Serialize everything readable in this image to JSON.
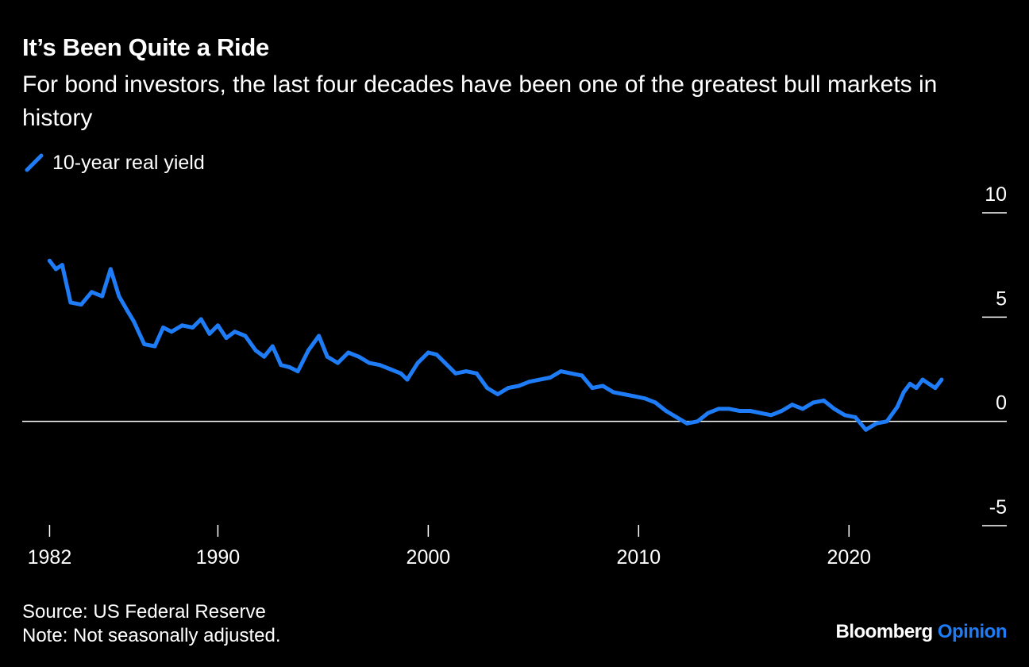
{
  "title": "It’s Been Quite a Ride",
  "subtitle": "For bond investors, the last four decades have been one of the greatest bull markets in history",
  "legend_label": "10-year real yield",
  "source": "Source: US Federal Reserve",
  "note": "Note: Not seasonally adjusted.",
  "brand": {
    "name": "Bloomberg",
    "suffix": "Opinion"
  },
  "colors": {
    "line": "#1f7cf7",
    "background": "#000000",
    "text": "#ffffff",
    "axis": "#ffffff"
  },
  "chart_data": {
    "type": "line",
    "series": [
      {
        "name": "10-year real yield",
        "x": [
          1982.0,
          1982.3,
          1982.6,
          1983.0,
          1983.5,
          1984.0,
          1984.5,
          1984.9,
          1985.3,
          1985.7,
          1986.0,
          1986.5,
          1987.0,
          1987.4,
          1987.8,
          1988.3,
          1988.8,
          1989.2,
          1989.6,
          1990.0,
          1990.4,
          1990.8,
          1991.3,
          1991.8,
          1992.2,
          1992.6,
          1993.0,
          1993.4,
          1993.8,
          1994.3,
          1994.8,
          1995.2,
          1995.7,
          1996.2,
          1996.7,
          1997.2,
          1997.7,
          1998.2,
          1998.7,
          1999.0,
          1999.5,
          2000.0,
          2000.4,
          2000.8,
          2001.3,
          2001.8,
          2002.3,
          2002.8,
          2003.3,
          2003.8,
          2004.3,
          2004.8,
          2005.3,
          2005.8,
          2006.3,
          2006.8,
          2007.3,
          2007.8,
          2008.3,
          2008.8,
          2009.3,
          2009.8,
          2010.3,
          2010.8,
          2011.3,
          2011.8,
          2012.3,
          2012.8,
          2013.3,
          2013.8,
          2014.3,
          2014.8,
          2015.3,
          2015.8,
          2016.3,
          2016.8,
          2017.3,
          2017.8,
          2018.3,
          2018.8,
          2019.3,
          2019.8,
          2020.3,
          2020.8,
          2021.3,
          2021.8,
          2022.3,
          2022.6,
          2022.9,
          2023.2,
          2023.5,
          2023.8,
          2024.1,
          2024.4
        ],
        "y": [
          7.7,
          7.3,
          7.5,
          5.7,
          5.6,
          6.2,
          6.0,
          7.3,
          6.0,
          5.3,
          4.8,
          3.7,
          3.6,
          4.5,
          4.3,
          4.6,
          4.5,
          4.9,
          4.2,
          4.6,
          4.0,
          4.3,
          4.1,
          3.4,
          3.1,
          3.6,
          2.7,
          2.6,
          2.4,
          3.4,
          4.1,
          3.1,
          2.8,
          3.3,
          3.1,
          2.8,
          2.7,
          2.5,
          2.3,
          2.0,
          2.8,
          3.3,
          3.2,
          2.8,
          2.3,
          2.4,
          2.3,
          1.6,
          1.3,
          1.6,
          1.7,
          1.9,
          2.0,
          2.1,
          2.4,
          2.3,
          2.2,
          1.6,
          1.7,
          1.4,
          1.3,
          1.2,
          1.1,
          0.9,
          0.5,
          0.2,
          -0.1,
          0.0,
          0.4,
          0.6,
          0.6,
          0.5,
          0.5,
          0.4,
          0.3,
          0.5,
          0.8,
          0.6,
          0.9,
          1.0,
          0.6,
          0.3,
          0.2,
          -0.4,
          -0.1,
          0.0,
          0.7,
          1.4,
          1.8,
          1.6,
          2.0,
          1.8,
          1.6,
          2.0
        ]
      }
    ],
    "x_ticks": [
      1982,
      1990,
      2000,
      2010,
      2020
    ],
    "y_ticks": [
      10,
      5,
      0,
      -5
    ],
    "xlim": [
      1980.7,
      2027.5
    ],
    "ylim": [
      -5,
      10
    ],
    "zero_line": true,
    "y_axis_side": "right",
    "grid": false,
    "legend_position": "top-left"
  }
}
